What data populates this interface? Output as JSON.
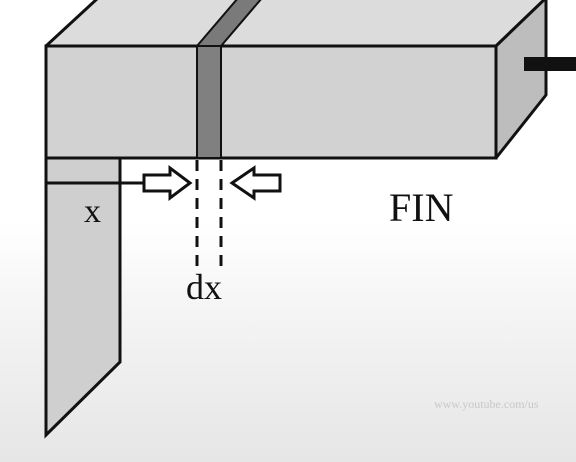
{
  "labels": {
    "x": "x",
    "dx": "dx",
    "fin": "FIN"
  },
  "watermark": "www.youtube.com/us",
  "colors": {
    "fin_face": "#d2d2d2",
    "fin_top": "#dcdcdc",
    "element_strip": "#808080",
    "outline": "#111111",
    "arrow_fill": "#ffffff"
  }
}
